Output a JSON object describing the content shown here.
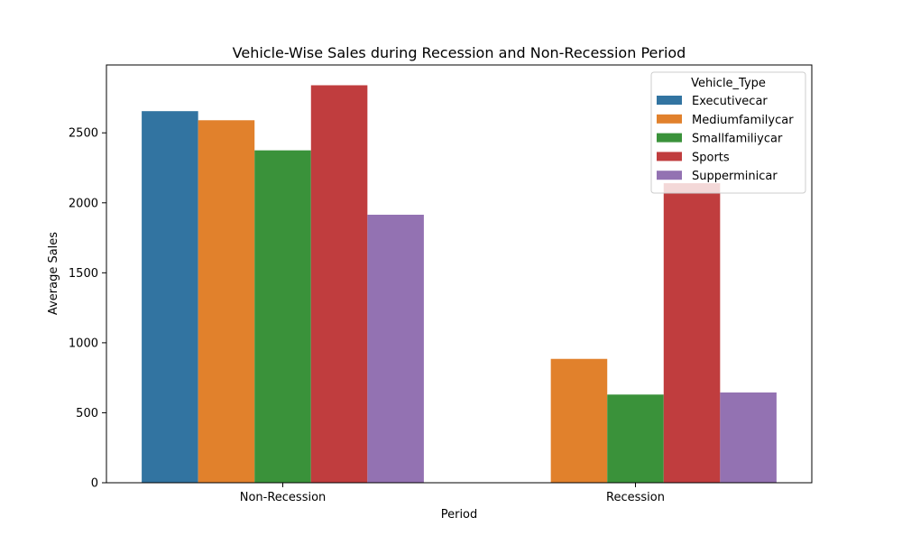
{
  "chart_data": {
    "type": "bar",
    "title": "Vehicle-Wise Sales during Recession and Non-Recession Period",
    "xlabel": "Period",
    "ylabel": "Average Sales",
    "categories": [
      "Non-Recession",
      "Recession"
    ],
    "ylim": [
      0,
      2985
    ],
    "yticks": [
      0,
      500,
      1000,
      1500,
      2000,
      2500
    ],
    "grid": false,
    "legend": {
      "title": "Vehicle_Type",
      "position": "top-right"
    },
    "series": [
      {
        "name": "Executivecar",
        "color": "#3274a1",
        "values": [
          2655,
          null
        ]
      },
      {
        "name": "Mediumfamilycar",
        "color": "#e1812c",
        "values": [
          2590,
          885
        ]
      },
      {
        "name": "Smallfamiliycar",
        "color": "#3a923a",
        "values": [
          2375,
          630
        ]
      },
      {
        "name": "Sports",
        "color": "#c03d3e",
        "values": [
          2840,
          2140
        ]
      },
      {
        "name": "Supperminicar",
        "color": "#9372b2",
        "values": [
          1915,
          645
        ]
      }
    ]
  }
}
